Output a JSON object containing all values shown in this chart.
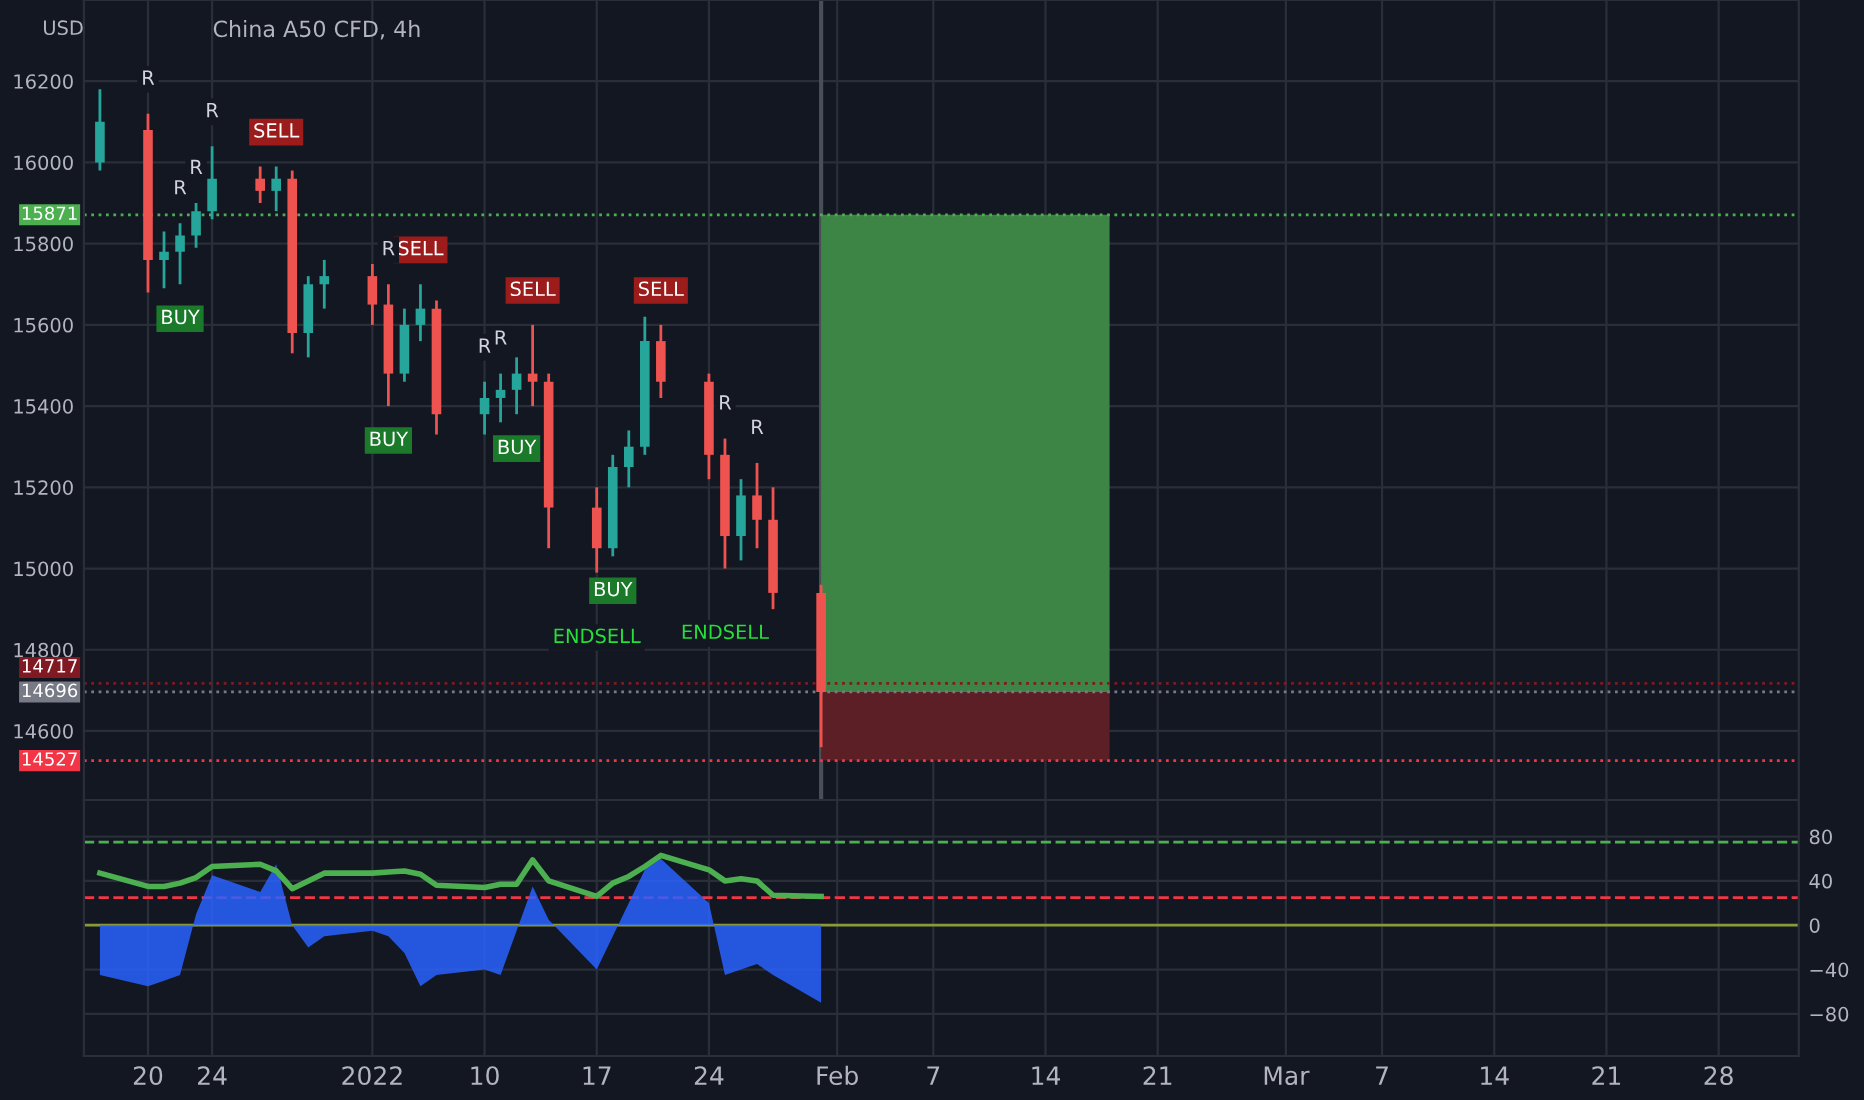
{
  "chart_data": [
    {
      "type": "candlestick",
      "title": "China A50 CFD, 4h",
      "ylabel": "USD",
      "x": [
        "2021-12-17",
        "2021-12-20",
        "2021-12-21",
        "2021-12-22",
        "2021-12-23",
        "2021-12-24",
        "2021-12-27",
        "2021-12-28",
        "2021-12-29",
        "2021-12-30",
        "2021-12-31",
        "2022-01-03",
        "2022-01-04",
        "2022-01-05",
        "2022-01-06",
        "2022-01-07",
        "2022-01-10",
        "2022-01-11",
        "2022-01-12",
        "2022-01-13",
        "2022-01-14",
        "2022-01-17",
        "2022-01-18",
        "2022-01-19",
        "2022-01-20",
        "2022-01-21",
        "2022-01-24",
        "2022-01-25",
        "2022-01-26",
        "2022-01-27",
        "2022-01-28",
        "2022-01-31"
      ],
      "ohlc": [
        [
          16000,
          16180,
          15980,
          16100
        ],
        [
          16080,
          16120,
          15680,
          15760
        ],
        [
          15760,
          15830,
          15690,
          15780
        ],
        [
          15780,
          15850,
          15700,
          15820
        ],
        [
          15820,
          15900,
          15790,
          15880
        ],
        [
          15880,
          16040,
          15860,
          15960
        ],
        [
          15960,
          15990,
          15900,
          15930
        ],
        [
          15930,
          15990,
          15880,
          15960
        ],
        [
          15960,
          15980,
          15530,
          15580
        ],
        [
          15580,
          15720,
          15520,
          15700
        ],
        [
          15700,
          15760,
          15640,
          15720
        ],
        [
          15720,
          15750,
          15600,
          15650
        ],
        [
          15650,
          15700,
          15400,
          15480
        ],
        [
          15480,
          15640,
          15460,
          15600
        ],
        [
          15600,
          15700,
          15560,
          15640
        ],
        [
          15640,
          15660,
          15330,
          15380
        ],
        [
          15380,
          15460,
          15330,
          15420
        ],
        [
          15420,
          15480,
          15360,
          15440
        ],
        [
          15440,
          15520,
          15380,
          15480
        ],
        [
          15480,
          15600,
          15400,
          15460
        ],
        [
          15460,
          15480,
          15050,
          15150
        ],
        [
          15150,
          15200,
          14990,
          15050
        ],
        [
          15050,
          15280,
          15030,
          15250
        ],
        [
          15250,
          15340,
          15200,
          15300
        ],
        [
          15300,
          15620,
          15280,
          15560
        ],
        [
          15560,
          15600,
          15420,
          15460
        ],
        [
          15460,
          15480,
          15220,
          15280
        ],
        [
          15280,
          15320,
          15000,
          15080
        ],
        [
          15080,
          15220,
          15020,
          15180
        ],
        [
          15180,
          15260,
          15050,
          15120
        ],
        [
          15120,
          15200,
          14900,
          14940
        ],
        [
          14940,
          14960,
          14560,
          14696
        ]
      ],
      "colors": [
        "#26a69a",
        "#ef5350",
        "#26a69a",
        "#26a69a",
        "#26a69a",
        "#26a69a",
        "#ef5350",
        "#26a69a",
        "#ef5350",
        "#26a69a",
        "#26a69a",
        "#ef5350",
        "#ef5350",
        "#26a69a",
        "#26a69a",
        "#ef5350",
        "#26a69a",
        "#26a69a",
        "#26a69a",
        "#ef5350",
        "#ef5350",
        "#ef5350",
        "#26a69a",
        "#26a69a",
        "#26a69a",
        "#ef5350",
        "#ef5350",
        "#ef5350",
        "#26a69a",
        "#ef5350",
        "#ef5350",
        "#ef5350"
      ],
      "series": [
        {
          "type": "bar",
          "x": [
            "2022-02-09"
          ],
          "base": [
            14527
          ],
          "values": [
            169
          ],
          "color": "#5c1f25"
        },
        {
          "type": "bar",
          "x": [
            "2022-02-09"
          ],
          "base": [
            14696
          ],
          "values": [
            1175
          ],
          "color": "#3d8545"
        }
      ],
      "ref_lines": [
        {
          "axis": "y",
          "value": 15871,
          "label": "15871",
          "color": "#4caf50"
        },
        {
          "axis": "y",
          "value": 14717,
          "label": "14717",
          "color": "#801922"
        },
        {
          "axis": "y",
          "value": 14696,
          "label": "14696",
          "color": "#787b86"
        },
        {
          "axis": "y",
          "value": 14527,
          "label": "14527",
          "color": "#f23645"
        },
        {
          "axis": "x",
          "value": "2022-01-31",
          "color": "#4a4e59"
        }
      ],
      "annotations": [
        {
          "text": "SELL",
          "x": "2021-12-28",
          "y": 15990
        },
        {
          "text": "BUY",
          "x": "2021-12-22",
          "y": 15700
        },
        {
          "text": "SELL",
          "x": "2022-01-06",
          "y": 15700
        },
        {
          "text": "BUY",
          "x": "2022-01-04",
          "y": 15400
        },
        {
          "text": "SELL",
          "x": "2022-01-13",
          "y": 15600
        },
        {
          "text": "BUY",
          "x": "2022-01-12",
          "y": 15380
        },
        {
          "text": "BUY",
          "x": "2022-01-18",
          "y": 15030
        },
        {
          "text": "ENDSELL",
          "x": "2022-01-17",
          "y": 14990
        },
        {
          "text": "SELL",
          "x": "2022-01-21",
          "y": 15600
        },
        {
          "text": "ENDSELL",
          "x": "2022-01-25",
          "y": 15000
        },
        {
          "text": "R",
          "x": "2021-12-20",
          "y": 16120
        },
        {
          "text": "R",
          "x": "2021-12-24",
          "y": 16040
        },
        {
          "text": "R",
          "x": "2021-12-23",
          "y": 15900
        },
        {
          "text": "R",
          "x": "2021-12-22",
          "y": 15850
        },
        {
          "text": "R",
          "x": "2022-01-04",
          "y": 15700
        },
        {
          "text": "R",
          "x": "2022-01-10",
          "y": 15460
        },
        {
          "text": "R",
          "x": "2022-01-11",
          "y": 15480
        },
        {
          "text": "R",
          "x": "2022-01-25",
          "y": 15320
        },
        {
          "text": "R",
          "x": "2022-01-27",
          "y": 15260
        }
      ],
      "xlim": [
        "2021-12-16",
        "2022-04-02"
      ],
      "xticks": [
        {
          "value": "2021-12-20",
          "label": null
        },
        {
          "value": "2021-12-24",
          "label": null
        },
        {
          "value": "2022-01-03",
          "label": null
        },
        {
          "value": "2022-01-10",
          "label": null
        },
        {
          "value": "2022-01-17",
          "label": null
        },
        {
          "value": "2022-01-24",
          "label": null
        },
        {
          "value": "2022-02-01",
          "label": null
        },
        {
          "value": "2022-02-07",
          "label": null
        },
        {
          "value": "2022-02-14",
          "label": null
        },
        {
          "value": "2022-02-21",
          "label": null
        },
        {
          "value": "2022-03-01",
          "label": null
        },
        {
          "value": "2022-03-07",
          "label": null
        },
        {
          "value": "2022-03-14",
          "label": null
        },
        {
          "value": "2022-03-21",
          "label": null
        },
        {
          "value": "2022-03-28",
          "label": null
        }
      ],
      "ylim": [
        14430,
        16400
      ],
      "yticks": [
        14600,
        14800,
        15000,
        15200,
        15400,
        15600,
        15800,
        16000,
        16200
      ],
      "grid": true,
      "tick_labels": "y"
    },
    {
      "type": "line",
      "x": [
        "2021-12-17",
        "2021-12-20",
        "2021-12-21",
        "2021-12-22",
        "2021-12-23",
        "2021-12-24",
        "2021-12-27",
        "2021-12-28",
        "2021-12-29",
        "2021-12-30",
        "2021-12-31",
        "2022-01-03",
        "2022-01-04",
        "2022-01-05",
        "2022-01-06",
        "2022-01-07",
        "2022-01-10",
        "2022-01-11",
        "2022-01-12",
        "2022-01-13",
        "2022-01-14",
        "2022-01-17",
        "2022-01-18",
        "2022-01-19",
        "2022-01-20",
        "2022-01-21",
        "2022-01-24",
        "2022-01-25",
        "2022-01-26",
        "2022-01-27",
        "2022-01-28",
        "2022-01-31"
      ],
      "series": [
        {
          "type": "area",
          "color": "#2962ff",
          "values": [
            -45,
            -55,
            -50,
            -45,
            10,
            45,
            30,
            55,
            0,
            -20,
            -10,
            -5,
            -10,
            -25,
            -55,
            -45,
            -40,
            -45,
            -5,
            35,
            5,
            -40,
            -10,
            20,
            50,
            60,
            20,
            -45,
            -40,
            -35,
            -45,
            -70
          ]
        },
        {
          "type": "line",
          "color": "#4caf50",
          "values": [
            47,
            35,
            35,
            38,
            43,
            53,
            55,
            49,
            33,
            40,
            47,
            47,
            48,
            49,
            46,
            36,
            34,
            37,
            37,
            59,
            40,
            26,
            38,
            44,
            53,
            63,
            50,
            40,
            42,
            40,
            27,
            26
          ]
        }
      ],
      "ref_lines": [
        {
          "axis": "y",
          "value": 75,
          "color": "#4caf50",
          "line_style": "dashed"
        },
        {
          "axis": "y",
          "value": 25,
          "color": "#f23645",
          "line_style": "dashed"
        },
        {
          "axis": "y",
          "value": 0,
          "color": "#8a9a3a",
          "line_style": "solid"
        }
      ],
      "xlim": [
        "2021-12-16",
        "2022-04-02"
      ],
      "xticks": [
        {
          "value": "2021-12-20",
          "label": "20"
        },
        {
          "value": "2021-12-24",
          "label": "24"
        },
        {
          "value": "2022-01-03",
          "label": "2022"
        },
        {
          "value": "2022-01-10",
          "label": "10"
        },
        {
          "value": "2022-01-17",
          "label": "17"
        },
        {
          "value": "2022-01-24",
          "label": "24"
        },
        {
          "value": "2022-02-01",
          "label": "Feb"
        },
        {
          "value": "2022-02-07",
          "label": "7"
        },
        {
          "value": "2022-02-14",
          "label": "14"
        },
        {
          "value": "2022-02-21",
          "label": "21"
        },
        {
          "value": "2022-03-01",
          "label": "Mar"
        },
        {
          "value": "2022-03-07",
          "label": "7"
        },
        {
          "value": "2022-03-14",
          "label": "14"
        },
        {
          "value": "2022-03-21",
          "label": "21"
        },
        {
          "value": "2022-03-28",
          "label": "28"
        }
      ],
      "ylim": [
        -118,
        113
      ],
      "yticks": [
        {
          "value": -80,
          "label": "−80"
        },
        {
          "value": -40,
          "label": "−40"
        },
        0,
        40,
        80
      ],
      "grid": true
    }
  ]
}
